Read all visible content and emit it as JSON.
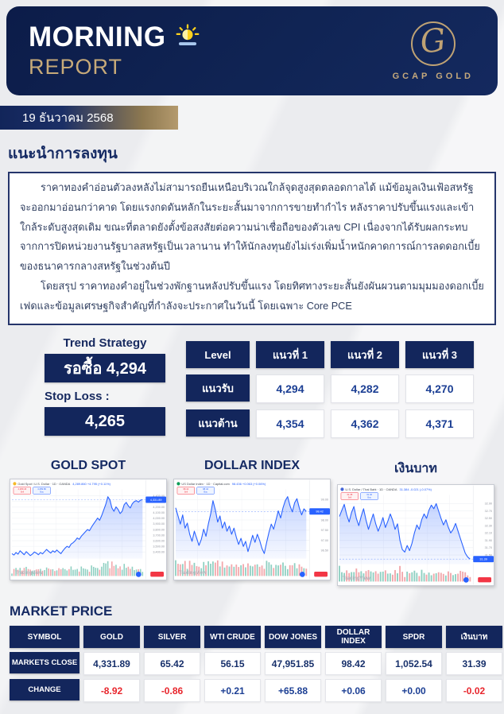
{
  "header": {
    "title": "MORNING",
    "subtitle": "REPORT",
    "logo_letter": "G",
    "logo_text": "GCAP GOLD",
    "navy": "#13265c",
    "gold": "#bfa274"
  },
  "date_badge": "19 ธันวาคม 2568",
  "advice": {
    "title": "แนะนำการลงทุน",
    "paragraph1": "ราคาทองคำอ่อนตัวลงหลังไม่สามารถยืนเหนือบริเวณใกล้จุดสูงสุดตลอดกาลได้ แม้ข้อมูลเงินเฟ้อสหรัฐจะออกมาอ่อนกว่าคาด โดยแรงกดดันหลักในระยะสั้นมาจากการขายทำกำไร หลังราคาปรับขึ้นแรงและเข้าใกล้ระดับสูงสุดเดิม ขณะที่ตลาดยังตั้งข้อสงสัยต่อความน่าเชื่อถือของตัวเลข CPI เนื่องจากได้รับผลกระทบจากการปิดหน่วยงานรัฐบาลสหรัฐเป็นเวลานาน ทำให้นักลงทุนยังไม่เร่งเพิ่มน้ำหนักคาดการณ์การลดดอกเบี้ยของธนาคารกลางสหรัฐในช่วงต้นปี",
    "paragraph2": "โดยสรุป ราคาทองคำอยู่ในช่วงพักฐานหลังปรับขึ้นแรง โดยทิศทางระยะสั้นยังผันผวนตามมุมมองดอกเบี้ยเฟดและข้อมูลเศรษฐกิจสำคัญที่กำลังจะประกาศในวันนี้ โดยเฉพาะ Core PCE"
  },
  "trend": {
    "title": "Trend Strategy",
    "signal": "รอซื้อ 4,294",
    "stop_loss_label": "Stop Loss :",
    "stop_loss_value": "4,265"
  },
  "level_table": {
    "headers": [
      "Level",
      "แนวที่ 1",
      "แนวที่ 2",
      "แนวที่ 3"
    ],
    "rows": [
      {
        "label": "แนวรับ",
        "values": [
          "4,294",
          "4,282",
          "4,270"
        ]
      },
      {
        "label": "แนวต้าน",
        "values": [
          "4,354",
          "4,362",
          "4,371"
        ]
      }
    ]
  },
  "charts": {
    "titles": [
      "GOLD SPOT",
      "DOLLAR INDEX",
      "เงินบาท"
    ],
    "watermark": "TradingView",
    "items": [
      {
        "legend": "Gold Spot / U.S. Dollar · 1D · OANDA",
        "value_text": "4,289.860 +4.795 (+0.11%)",
        "icon_color": "#f5b928",
        "sell": "4,289.43",
        "buy": "4,289.86",
        "tag": "4,331.89",
        "ylim": [
          3280,
          4460
        ],
        "axis": [
          {
            "v": 4400,
            "t": "4,400.00"
          },
          {
            "v": 4300,
            "t": "4,300.00"
          },
          {
            "v": 4200,
            "t": "4,200.00"
          },
          {
            "v": 4100,
            "t": "4,100.00"
          },
          {
            "v": 4000,
            "t": "4,000.00"
          },
          {
            "v": 3900,
            "t": "3,900.00"
          },
          {
            "v": 3800,
            "t": "3,800.00"
          },
          {
            "v": 3700,
            "t": "3,700.00"
          },
          {
            "v": 3600,
            "t": "3,600.00"
          },
          {
            "v": 3500,
            "t": "3,500.00"
          },
          {
            "v": 3400,
            "t": "3,400.00"
          }
        ],
        "series": [
          3370,
          3345,
          3390,
          3360,
          3420,
          3385,
          3350,
          3405,
          3370,
          3335,
          3360,
          3400,
          3380,
          3350,
          3390,
          3365,
          3405,
          3445,
          3410,
          3380,
          3420,
          3395,
          3435,
          3400,
          3370,
          3420,
          3465,
          3500,
          3480,
          3540,
          3565,
          3600,
          3650,
          3625,
          3680,
          3720,
          3760,
          3800,
          3780,
          3845,
          3900,
          3950,
          4005,
          3965,
          4050,
          4150,
          4250,
          4385,
          4330,
          4185,
          4125,
          4205,
          4160,
          4085,
          4125,
          4245,
          4285,
          4225,
          4185,
          4260,
          4300,
          4315,
          4290,
          4325,
          4332
        ]
      },
      {
        "legend": "US Dollar Index · 1D · Capital.com",
        "value_text": "98.436 +0.063 (+0.06%)",
        "icon_color": "#0f9d58",
        "sell": "98.42",
        "buy": "98.44",
        "tag": "98.42",
        "ylim": [
          96.1,
          99.35
        ],
        "axis": [
          {
            "v": 99.0,
            "t": "99.00"
          },
          {
            "v": 98.5,
            "t": "98.50"
          },
          {
            "v": 98.0,
            "t": "98.00"
          },
          {
            "v": 97.5,
            "t": "97.50"
          },
          {
            "v": 97.0,
            "t": "97.00"
          },
          {
            "v": 96.5,
            "t": "96.50"
          }
        ],
        "series": [
          98.6,
          98.2,
          97.8,
          98.25,
          97.6,
          97.85,
          97.3,
          96.95,
          97.45,
          97.1,
          96.75,
          97.05,
          97.55,
          97.2,
          97.8,
          98.3,
          98.95,
          98.5,
          97.9,
          98.2,
          97.6,
          97.9,
          97.45,
          97.7,
          97.3,
          97.6,
          97.15,
          96.8,
          97.1,
          96.7,
          96.95,
          96.45,
          96.85,
          97.25,
          96.9,
          97.3,
          97.0,
          96.6,
          96.35,
          96.9,
          97.4,
          97.8,
          97.55,
          98.0,
          98.45,
          98.1,
          98.6,
          98.95,
          99.15,
          98.7,
          98.4,
          98.85,
          99.05,
          98.6,
          98.25,
          98.55,
          98.42
        ]
      },
      {
        "legend": "U.S. Dollar / Thai Baht · 1D · OANDA",
        "value_text": "31.384 -0.021 (-0.07%)",
        "icon_color": "#4565d8",
        "sell": "31.38",
        "buy": "31.40",
        "tag": "31.39",
        "ylim": [
          31.25,
          33.05
        ],
        "axis": [
          {
            "v": 32.9,
            "t": "32.90"
          },
          {
            "v": 32.7,
            "t": "32.70"
          },
          {
            "v": 32.5,
            "t": "32.50"
          },
          {
            "v": 32.3,
            "t": "32.30"
          },
          {
            "v": 32.1,
            "t": "32.10"
          },
          {
            "v": 31.9,
            "t": "31.90"
          },
          {
            "v": 31.7,
            "t": "31.70"
          },
          {
            "v": 31.5,
            "t": "31.50"
          }
        ],
        "series": [
          32.55,
          32.72,
          32.88,
          32.6,
          32.4,
          32.66,
          32.82,
          32.5,
          32.3,
          32.56,
          32.76,
          32.45,
          32.2,
          32.42,
          32.62,
          32.35,
          32.15,
          32.32,
          32.52,
          32.25,
          32.42,
          32.62,
          32.45,
          32.2,
          32.35,
          31.9,
          31.65,
          31.58,
          31.76,
          31.62,
          31.82,
          32.1,
          32.32,
          32.2,
          32.46,
          32.62,
          32.5,
          32.72,
          32.86,
          32.76,
          32.9,
          32.7,
          32.5,
          32.32,
          32.46,
          32.26,
          32.1,
          32.2,
          32.36,
          32.16,
          31.95,
          31.75,
          31.55,
          31.45,
          31.39
        ]
      }
    ]
  },
  "market": {
    "title": "MARKET PRICE",
    "headers": [
      "SYMBOL",
      "GOLD",
      "SILVER",
      "WTI CRUDE",
      "DOW JONES",
      "DOLLAR INDEX",
      "SPDR",
      "เงินบาท"
    ],
    "close_label": "MARKETS CLOSE",
    "change_label": "CHANGE",
    "close": [
      "4,331.89",
      "65.42",
      "56.15",
      "47,951.85",
      "98.42",
      "1,052.54",
      "31.39"
    ],
    "change": [
      {
        "text": "-8.92",
        "tone": "neg"
      },
      {
        "text": "-0.86",
        "tone": "neg"
      },
      {
        "text": "+0.21",
        "tone": "pos"
      },
      {
        "text": "+65.88",
        "tone": "pos"
      },
      {
        "text": "+0.06",
        "tone": "pos"
      },
      {
        "text": "+0.00",
        "tone": "pos"
      },
      {
        "text": "-0.02",
        "tone": "neg"
      }
    ]
  }
}
